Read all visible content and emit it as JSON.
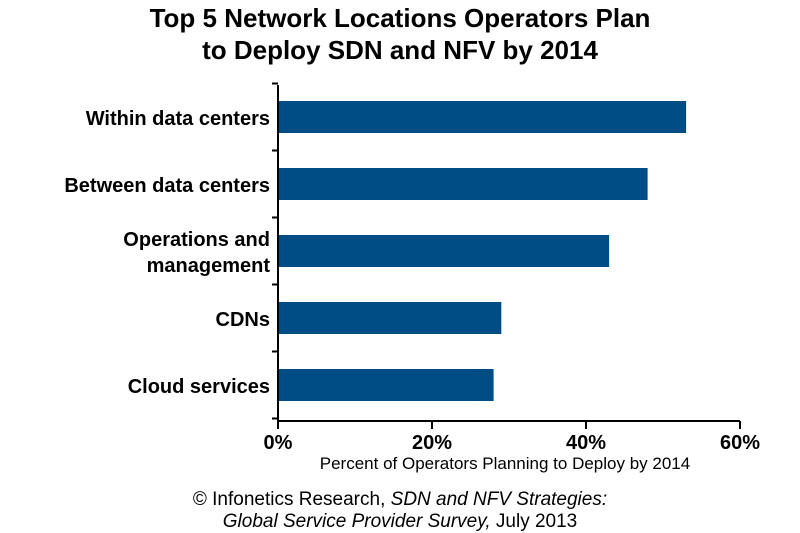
{
  "chart_data": {
    "type": "bar",
    "orientation": "horizontal",
    "title_line1": "Top 5 Network Locations Operators Plan",
    "title_line2": "to Deploy SDN and NFV by 2014",
    "xlabel": "Percent of Operators Planning to Deploy by 2014",
    "categories": [
      [
        "Within data centers"
      ],
      [
        "Between data centers"
      ],
      [
        "Operations and",
        "management"
      ],
      [
        "CDNs"
      ],
      [
        "Cloud services"
      ]
    ],
    "values": [
      53,
      48,
      43,
      29,
      28
    ],
    "xlim": [
      0,
      60
    ],
    "ticks": [
      "0%",
      "20%",
      "40%",
      "60%"
    ],
    "tick_values": [
      0,
      20,
      40,
      60
    ],
    "bar_color": "#004c84",
    "grid": false
  },
  "source": {
    "line1_prefix": "© Infonetics Research, ",
    "line1_italic": "SDN and NFV Strategies:",
    "line2_italic": "Global Service Provider Survey,",
    "line2_suffix": " July 2013"
  }
}
